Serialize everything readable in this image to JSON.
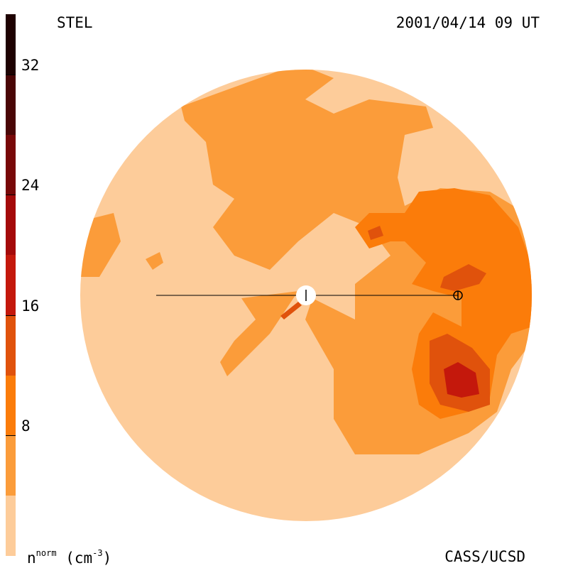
{
  "header": {
    "instrument": "STEL",
    "timestamp": "2001/04/14 09 UT"
  },
  "footer": {
    "unit_label_base": "n",
    "unit_label_sup": "norm",
    "unit_label_rest": "(cm",
    "unit_exp": "-3",
    "unit_close": ")",
    "credit": "CASS/UCSD"
  },
  "chart_data": {
    "type": "heatmap",
    "title": "STEL",
    "subtitle": "2001/04/14 09 UT",
    "colorbar": {
      "label": "n^norm (cm^-3)",
      "range": [
        0,
        36
      ],
      "ticks": [
        8,
        16,
        24,
        32
      ],
      "tick_labels": [
        "8",
        "16",
        "24",
        "32"
      ],
      "levels": [
        {
          "from": 0,
          "to": 4,
          "color": "#fdcc9a"
        },
        {
          "from": 4,
          "to": 8,
          "color": "#fb9c3a"
        },
        {
          "from": 8,
          "to": 12,
          "color": "#fb7c0a"
        },
        {
          "from": 12,
          "to": 16,
          "color": "#e0520c"
        },
        {
          "from": 16,
          "to": 20,
          "color": "#c4180c"
        },
        {
          "from": 20,
          "to": 24,
          "color": "#a40a0a"
        },
        {
          "from": 24,
          "to": 28,
          "color": "#780808"
        },
        {
          "from": 28,
          "to": 32,
          "color": "#4a0606"
        },
        {
          "from": 32,
          "to": 36,
          "color": "#1e0202"
        }
      ]
    },
    "regions": [
      {
        "name": "background",
        "level": "0-4"
      },
      {
        "name": "upper-band",
        "level": "4-8"
      },
      {
        "name": "east-enhancement",
        "level": "8-12"
      },
      {
        "name": "east-core",
        "level": "12-16"
      },
      {
        "name": "peak-southeast",
        "level": "16-24"
      }
    ],
    "observer": "Earth",
    "grid": false
  }
}
